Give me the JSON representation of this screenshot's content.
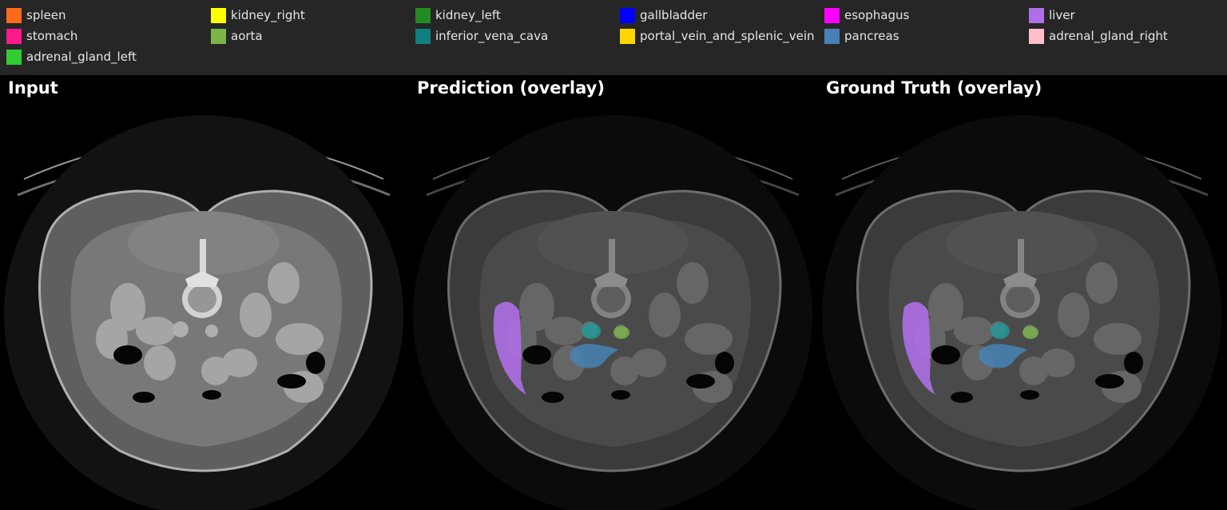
{
  "legend": {
    "items": [
      {
        "label": "spleen",
        "color": "#ff6b1a"
      },
      {
        "label": "kidney_right",
        "color": "#ffff00"
      },
      {
        "label": "kidney_left",
        "color": "#228b22"
      },
      {
        "label": "gallbladder",
        "color": "#0000ff"
      },
      {
        "label": "esophagus",
        "color": "#ff00ff"
      },
      {
        "label": "liver",
        "color": "#b06ee8"
      },
      {
        "label": "stomach",
        "color": "#ff1a8c"
      },
      {
        "label": "aorta",
        "color": "#7ab648"
      },
      {
        "label": "inferior_vena_cava",
        "color": "#0f8080"
      },
      {
        "label": "portal_vein_and_splenic_vein",
        "color": "#ffd700"
      },
      {
        "label": "pancreas",
        "color": "#4682b4"
      },
      {
        "label": "adrenal_gland_right",
        "color": "#ffc0cb"
      },
      {
        "label": "adrenal_gland_left",
        "color": "#32cd32"
      }
    ]
  },
  "panels": {
    "input": {
      "title": "Input"
    },
    "prediction": {
      "title": "Prediction (overlay)"
    },
    "ground_truth": {
      "title": "Ground Truth (overlay)"
    }
  }
}
